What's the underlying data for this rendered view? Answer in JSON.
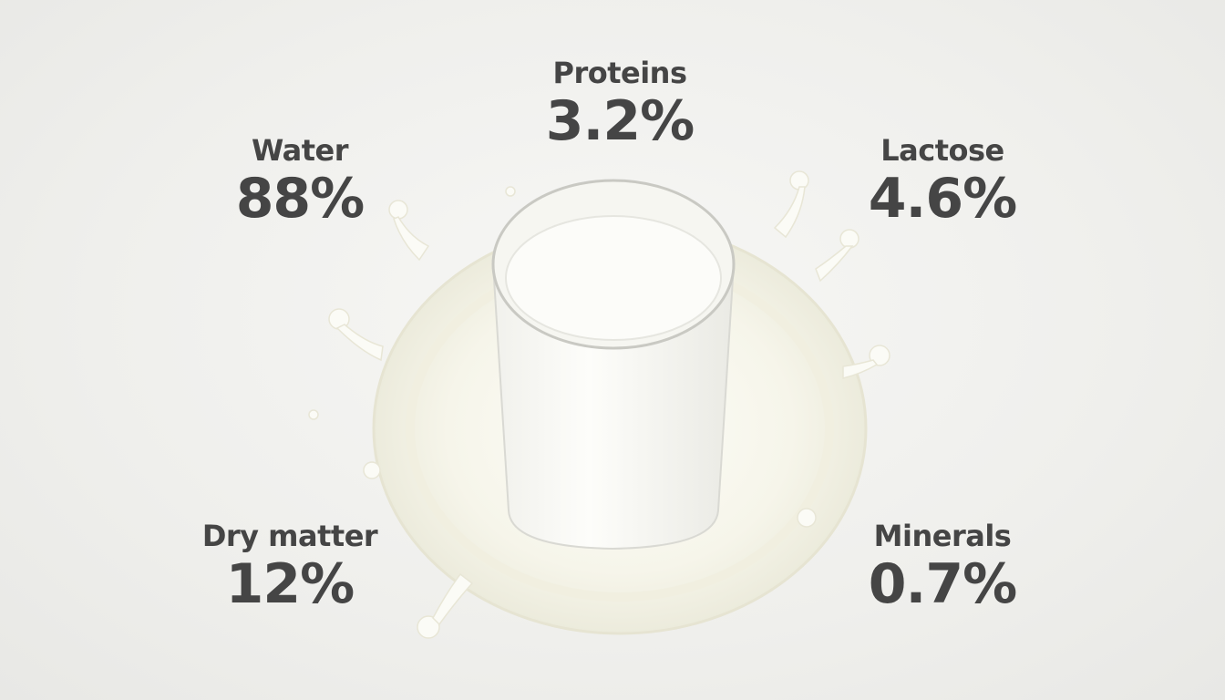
{
  "stats": {
    "water": {
      "label": "Water",
      "value": "88%"
    },
    "proteins": {
      "label": "Proteins",
      "value": "3.2%"
    },
    "lactose": {
      "label": "Lactose",
      "value": "4.6%"
    },
    "dry_matter": {
      "label": "Dry matter",
      "value": "12%"
    },
    "minerals": {
      "label": "Minerals",
      "value": "0.7%"
    }
  },
  "colors": {
    "text": "#454545",
    "milk": "#fbfbf6",
    "background": "#efefec"
  }
}
